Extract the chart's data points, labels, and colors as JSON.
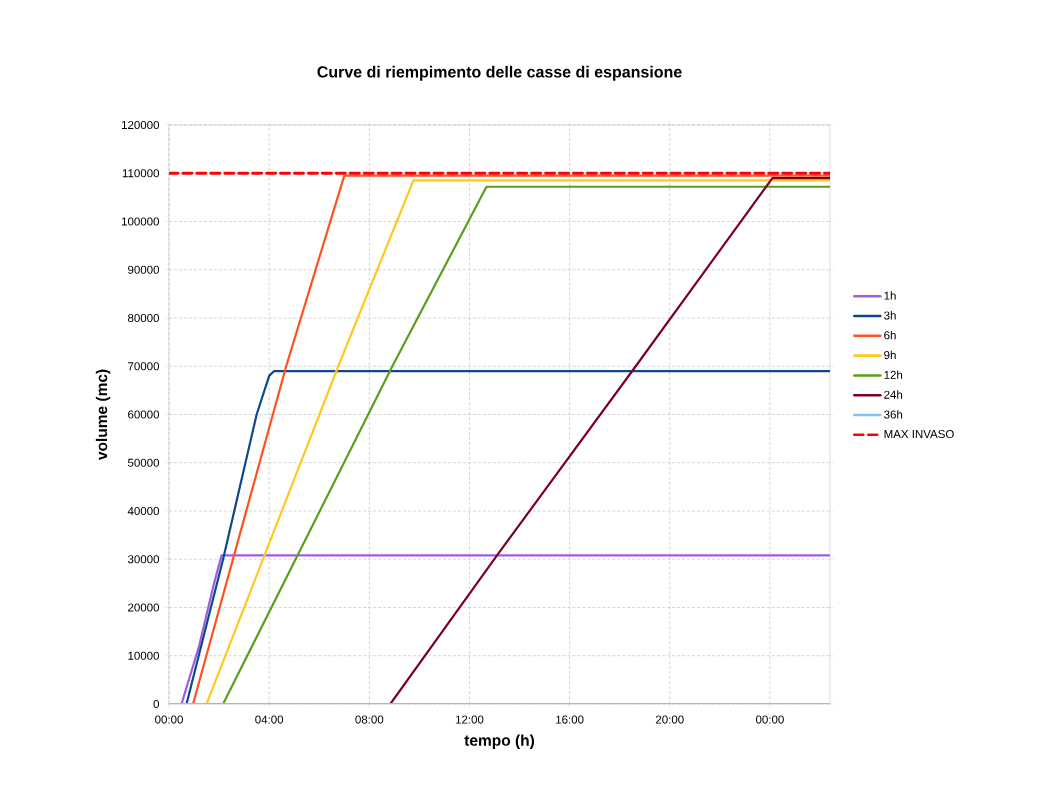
{
  "chart_data": {
    "type": "line",
    "title": "Curve di riempimento delle casse di espansione",
    "xlabel": "tempo (h)",
    "ylabel": "volume (mc)",
    "xlim": [
      0,
      26.4
    ],
    "ylim": [
      0,
      120000
    ],
    "xticks": [
      {
        "value": 0,
        "label": "00:00"
      },
      {
        "value": 4,
        "label": "04:00"
      },
      {
        "value": 8,
        "label": "08:00"
      },
      {
        "value": 12,
        "label": "12:00"
      },
      {
        "value": 16,
        "label": "16:00"
      },
      {
        "value": 20,
        "label": "20:00"
      },
      {
        "value": 24,
        "label": "00:00"
      }
    ],
    "yticks": [
      0,
      10000,
      20000,
      30000,
      40000,
      50000,
      60000,
      70000,
      80000,
      90000,
      100000,
      110000,
      120000
    ],
    "grid": true,
    "legend": "right",
    "line_style": "solid",
    "series": [
      {
        "name": "1h",
        "color": "#a05ce0",
        "x": [
          0.5,
          1.2,
          1.8,
          2.1,
          26.4
        ],
        "values": [
          0,
          12000,
          25000,
          30800,
          30800
        ]
      },
      {
        "name": "3h",
        "color": "#0b4a8a",
        "x": [
          0.7,
          2.16,
          3.5,
          4.0,
          4.2,
          26.4
        ],
        "values": [
          0,
          30000,
          60000,
          68000,
          69000,
          69000
        ]
      },
      {
        "name": "6h",
        "color": "#ff5020",
        "x": [
          0.96,
          4.68,
          7.0,
          26.4
        ],
        "values": [
          0,
          70000,
          109500,
          109500
        ]
      },
      {
        "name": "9h",
        "color": "#ffc820",
        "x": [
          1.5,
          6.76,
          9.76,
          26.4
        ],
        "values": [
          0,
          70000,
          108500,
          108500
        ]
      },
      {
        "name": "12h",
        "color": "#5a9e1e",
        "x": [
          2.16,
          8.92,
          12.68,
          26.4
        ],
        "values": [
          0,
          70000,
          107200,
          107200
        ]
      },
      {
        "name": "24h",
        "color": "#7a0025",
        "x": [
          8.84,
          13.1,
          18.64,
          24.1,
          26.4
        ],
        "values": [
          0,
          30800,
          70000,
          109000,
          109000
        ]
      },
      {
        "name": "36h",
        "color": "#80c4f5",
        "x": [
          0,
          26.4
        ],
        "values": [
          0,
          0
        ]
      },
      {
        "name": "MAX INVASO",
        "color": "#ff0000",
        "line_style": "dashed",
        "x": [
          0,
          26.4
        ],
        "values": [
          110000,
          110000
        ]
      }
    ]
  }
}
